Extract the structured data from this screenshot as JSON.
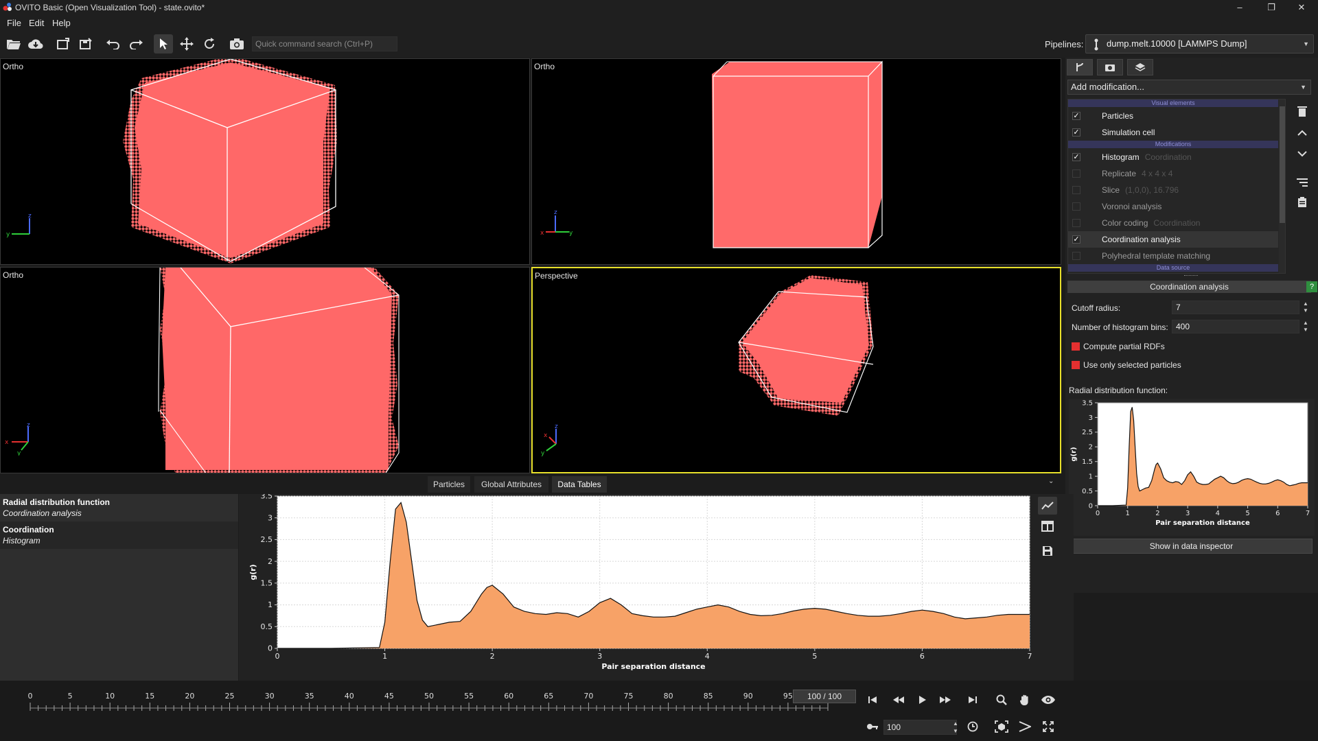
{
  "window": {
    "title": "OVITO Basic (Open Visualization Tool) - state.ovito*",
    "controls": {
      "minimize": "–",
      "maximize": "❐",
      "close": "✕"
    }
  },
  "menu": [
    "File",
    "Edit",
    "Help"
  ],
  "toolbar": {
    "search_placeholder": "Quick command search (Ctrl+P)",
    "pipelines_label": "Pipelines:",
    "pipeline_selected": "dump.melt.10000 [LAMMPS Dump]"
  },
  "viewports": [
    {
      "caption": "Ortho"
    },
    {
      "caption": "Ortho"
    },
    {
      "caption": "Ortho"
    },
    {
      "caption": "Perspective"
    }
  ],
  "axes": {
    "x": "x",
    "y": "y",
    "z": "z"
  },
  "right_panel": {
    "add_modification": "Add modification...",
    "sections": {
      "visual": "Visual elements",
      "modifications": "Modifications",
      "source": "Data source"
    },
    "items": [
      {
        "label": "Particles",
        "sub": "",
        "checked": true,
        "enabled": true
      },
      {
        "label": "Simulation cell",
        "sub": "",
        "checked": true,
        "enabled": true
      },
      {
        "label": "Histogram",
        "sub": "Coordination",
        "checked": true,
        "enabled": true
      },
      {
        "label": "Replicate",
        "sub": "4 x 4 x 4",
        "checked": false,
        "enabled": false
      },
      {
        "label": "Slice",
        "sub": "(1,0,0), 16.796",
        "checked": false,
        "enabled": false
      },
      {
        "label": "Voronoi analysis",
        "sub": "",
        "checked": false,
        "enabled": false
      },
      {
        "label": "Color coding",
        "sub": "Coordination",
        "checked": false,
        "enabled": false
      },
      {
        "label": "Coordination analysis",
        "sub": "",
        "checked": true,
        "enabled": true
      },
      {
        "label": "Polyhedral template matching",
        "sub": "",
        "checked": false,
        "enabled": false
      }
    ],
    "modifier_title": "Coordination analysis",
    "help": "?",
    "cutoff_label": "Cutoff radius:",
    "cutoff_value": "7",
    "bins_label": "Number of histogram bins:",
    "bins_value": "400",
    "partial_rdfs": "Compute partial RDFs",
    "only_selected": "Use only selected particles",
    "rdf_label": "Radial distribution function:",
    "show_inspector": "Show in data inspector"
  },
  "bottom_tabs": [
    "Particles",
    "Global Attributes",
    "Data Tables"
  ],
  "data_list": [
    {
      "title": "Radial distribution function",
      "sub": "Coordination analysis"
    },
    {
      "title": "Coordination",
      "sub": "Histogram"
    }
  ],
  "chart_data": {
    "type": "area",
    "title": "",
    "xlabel": "Pair separation distance",
    "ylabel": "g(r)",
    "xlim": [
      0,
      7
    ],
    "ylim": [
      0,
      3.5
    ],
    "xticks": [
      0,
      1,
      2,
      3,
      4,
      5,
      6,
      7
    ],
    "yticks": [
      0,
      0.5,
      1,
      1.5,
      2,
      2.5,
      3,
      3.5
    ],
    "x": [
      0,
      0.5,
      0.95,
      1.0,
      1.05,
      1.1,
      1.15,
      1.2,
      1.25,
      1.3,
      1.35,
      1.4,
      1.5,
      1.6,
      1.7,
      1.8,
      1.9,
      1.95,
      2.0,
      2.1,
      2.2,
      2.3,
      2.4,
      2.5,
      2.6,
      2.7,
      2.8,
      2.9,
      3.0,
      3.1,
      3.2,
      3.3,
      3.4,
      3.5,
      3.6,
      3.7,
      3.8,
      3.9,
      4.0,
      4.1,
      4.2,
      4.3,
      4.4,
      4.5,
      4.6,
      4.7,
      4.8,
      4.9,
      5.0,
      5.1,
      5.2,
      5.3,
      5.4,
      5.5,
      5.6,
      5.7,
      5.8,
      5.9,
      6.0,
      6.1,
      6.2,
      6.3,
      6.4,
      6.5,
      6.6,
      6.7,
      6.8,
      6.9,
      7.0
    ],
    "values": [
      0,
      0,
      0.02,
      0.6,
      2.0,
      3.2,
      3.35,
      2.9,
      2.0,
      1.1,
      0.65,
      0.5,
      0.55,
      0.6,
      0.62,
      0.85,
      1.25,
      1.4,
      1.45,
      1.25,
      0.95,
      0.85,
      0.8,
      0.78,
      0.82,
      0.8,
      0.72,
      0.85,
      1.05,
      1.15,
      1.0,
      0.8,
      0.75,
      0.72,
      0.72,
      0.74,
      0.82,
      0.9,
      0.95,
      1.0,
      0.95,
      0.85,
      0.78,
      0.75,
      0.76,
      0.8,
      0.86,
      0.9,
      0.92,
      0.9,
      0.85,
      0.8,
      0.76,
      0.74,
      0.74,
      0.76,
      0.8,
      0.85,
      0.88,
      0.85,
      0.8,
      0.72,
      0.68,
      0.7,
      0.72,
      0.76,
      0.78,
      0.78,
      0.78
    ],
    "fill_color": "#f7a267",
    "line_color": "#111111"
  },
  "timeline": {
    "ticks": [
      0,
      5,
      10,
      15,
      20,
      25,
      30,
      35,
      40,
      45,
      50,
      55,
      60,
      65,
      70,
      75,
      80,
      85,
      90,
      95
    ],
    "frame_display": "100 / 100",
    "current_frame": 100,
    "frame_input": "100"
  },
  "colors": {
    "particle": "#ff6868",
    "active_viewport": "#e8e02a",
    "accent_red": "#e53030"
  }
}
